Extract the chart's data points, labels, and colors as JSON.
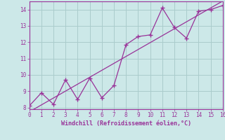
{
  "xlabel": "Windchill (Refroidissement éolien,°C)",
  "x_data": [
    0,
    1,
    2,
    3,
    4,
    5,
    6,
    7,
    8,
    9,
    10,
    11,
    12,
    13,
    14,
    15,
    16
  ],
  "y_scatter": [
    8.1,
    8.9,
    8.2,
    9.7,
    8.5,
    9.8,
    8.6,
    9.35,
    11.85,
    12.35,
    12.45,
    14.1,
    12.9,
    12.25,
    13.9,
    14.0,
    14.25
  ],
  "line_color": "#993399",
  "scatter_color": "#993399",
  "bg_color": "#cce8e8",
  "grid_color": "#aacccc",
  "axis_color": "#993399",
  "tick_color": "#993399",
  "label_color": "#993399",
  "xlim": [
    0,
    16
  ],
  "ylim": [
    7.9,
    14.5
  ],
  "yticks": [
    8,
    9,
    10,
    11,
    12,
    13,
    14
  ],
  "xticks": [
    0,
    1,
    2,
    3,
    4,
    5,
    6,
    7,
    8,
    9,
    10,
    11,
    12,
    13,
    14,
    15,
    16
  ]
}
